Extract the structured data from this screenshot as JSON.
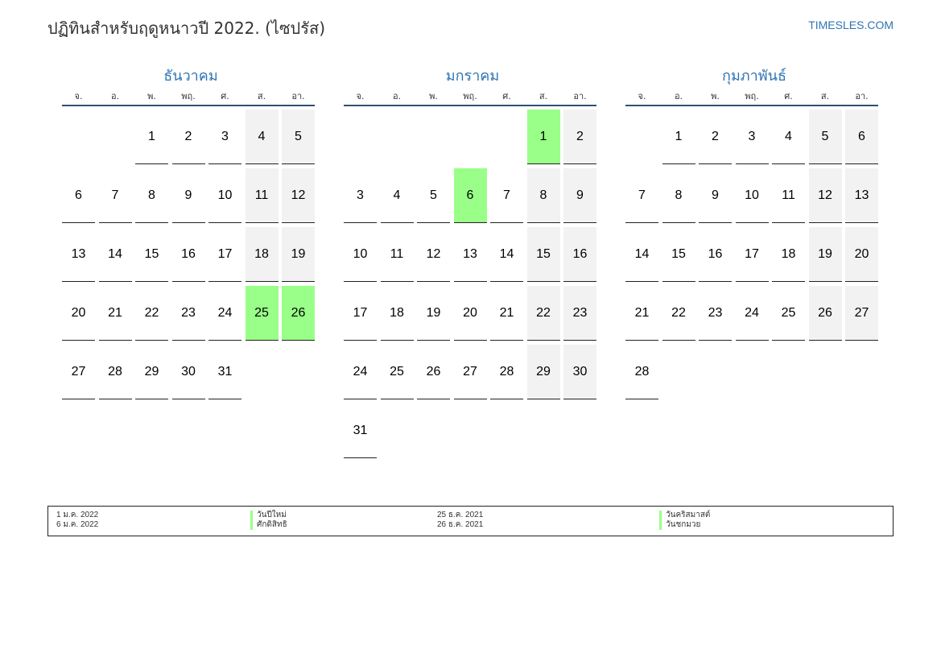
{
  "header": {
    "title": "ปฏิทินสำหรับฤดูหนาวปี 2022. (ไซปรัส)",
    "site": "TIMESLES.COM"
  },
  "weekdays": [
    "จ.",
    "อ.",
    "พ.",
    "พฤ.",
    "ศ.",
    "ส.",
    "อา."
  ],
  "colors": {
    "accent": "#2e74b5",
    "holiday": "#99ff88",
    "weekend": "#f2f2f2",
    "header_rule": "#2f4f74"
  },
  "months": [
    {
      "name": "ธันวาคม",
      "start_offset": 2,
      "days_in_month": 31,
      "holidays": [
        25,
        26
      ]
    },
    {
      "name": "มกราคม",
      "start_offset": 5,
      "days_in_month": 31,
      "holidays": [
        1,
        6
      ]
    },
    {
      "name": "กุมภาพันธ์",
      "start_offset": 1,
      "days_in_month": 28,
      "holidays": []
    }
  ],
  "legend": [
    {
      "date": "1 ม.ค. 2022",
      "name": "วันปีใหม่"
    },
    {
      "date": "6 ม.ค. 2022",
      "name": "ศักดิสิทธิ"
    },
    {
      "date": "25 ธ.ค. 2021",
      "name": "วันคริสมาสต์"
    },
    {
      "date": "26 ธ.ค. 2021",
      "name": "วันชกมวย"
    }
  ]
}
